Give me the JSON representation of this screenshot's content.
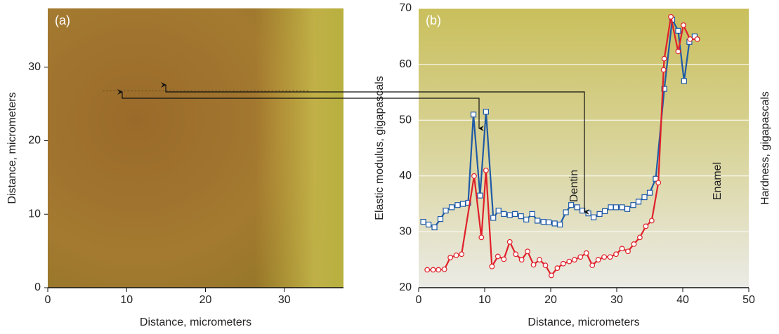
{
  "chart_data": [
    {
      "type": "image",
      "label": "(a)",
      "xlabel": "Distance, micrometers",
      "ylabel": "Distance, micrometers",
      "xlim": [
        0,
        37.5
      ],
      "xticks": [
        0,
        10,
        20,
        30
      ],
      "ylim": [
        0,
        38
      ],
      "yticks": [
        0,
        10,
        20,
        30
      ]
    },
    {
      "type": "line",
      "label": "(b)",
      "xlabel": "Distance, micrometers",
      "ylabel": "Elastic modulus, gigapascals",
      "y2label": "Hardness, gigapascals",
      "annotations": [
        "Dentin",
        "Enamel"
      ],
      "grid": true,
      "xlim": [
        0,
        50
      ],
      "xticks": [
        0,
        10,
        20,
        30,
        40,
        50
      ],
      "ylim": [
        20,
        70
      ],
      "yticks": [
        20,
        30,
        40,
        50,
        60,
        70
      ],
      "series": [
        {
          "color": "#1f5aa6",
          "marker": "square",
          "x": [
            0.7,
            1.5,
            2.4,
            3.3,
            4.1,
            5.0,
            5.9,
            6.7,
            7.5,
            8.3,
            9.3,
            10.2,
            11.3,
            12.1,
            12.9,
            13.8,
            14.6,
            15.5,
            16.3,
            17.2,
            18.0,
            18.9,
            19.7,
            20.6,
            21.4,
            22.3,
            23.1,
            24.0,
            24.8,
            25.7,
            26.5,
            27.4,
            28.2,
            29.1,
            29.9,
            30.8,
            31.6,
            32.5,
            33.3,
            34.2,
            35.0,
            35.9,
            37.2,
            38.4,
            39.3,
            40.2,
            41.0,
            41.8
          ],
          "values": [
            31.8,
            31.3,
            30.8,
            32.3,
            33.8,
            34.4,
            34.8,
            35.0,
            35.2,
            51,
            36.5,
            51.5,
            32.5,
            33.8,
            33.2,
            33.0,
            33.2,
            32.8,
            32.2,
            33.2,
            32.0,
            31.8,
            31.7,
            31.5,
            31.3,
            33.5,
            34.8,
            34.4,
            33.8,
            33.3,
            32.6,
            33.2,
            33.7,
            34.4,
            34.4,
            34.4,
            34.1,
            34.8,
            35.4,
            36.2,
            37.0,
            39.5,
            55.6,
            68,
            66,
            57,
            64,
            65
          ]
        },
        {
          "color": "#e0202a",
          "marker": "circle",
          "x": [
            1.3,
            2.2,
            3.0,
            3.9,
            4.8,
            5.7,
            6.5,
            8.4,
            9.5,
            10.2,
            11.1,
            12.0,
            12.9,
            13.8,
            14.7,
            15.6,
            16.5,
            17.4,
            18.3,
            19.2,
            20.1,
            21.0,
            21.9,
            22.8,
            23.6,
            24.5,
            25.4,
            26.3,
            27.2,
            28.1,
            29.0,
            29.9,
            30.8,
            31.7,
            32.6,
            33.5,
            34.4,
            35.3,
            36.3,
            37.1,
            37.2,
            38.2,
            39.3,
            40.1,
            41.1,
            42.2
          ],
          "values": [
            23.2,
            23.2,
            23.2,
            23.3,
            25.4,
            25.8,
            26.0,
            40,
            29,
            41,
            23.8,
            25.6,
            25.1,
            28.2,
            26,
            25,
            26.5,
            24.1,
            25,
            24,
            22.2,
            23.5,
            24.3,
            24.7,
            25,
            25.5,
            26.2,
            24,
            25,
            25.5,
            25.5,
            26,
            27,
            26.5,
            27.8,
            29,
            31,
            32,
            38.8,
            59,
            61,
            68.5,
            62.3,
            67,
            64.5,
            64.5
          ]
        }
      ]
    }
  ]
}
